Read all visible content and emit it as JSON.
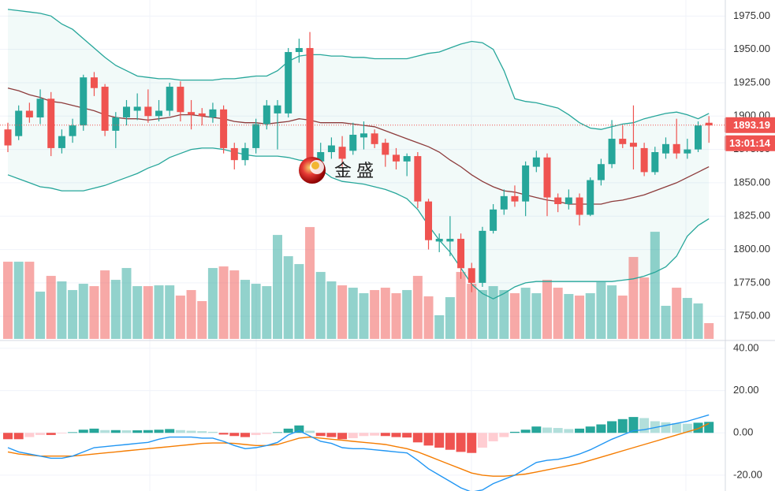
{
  "chart_data": [
    {
      "type": "candlestick",
      "open": [
        1890,
        1885,
        1904,
        1899,
        1913,
        1876,
        1885,
        1893,
        1929,
        1922,
        1889,
        1899,
        1904,
        1907,
        1900,
        1904,
        1922,
        1903,
        1902,
        1899,
        1905,
        1876,
        1867,
        1876,
        1894,
        1902,
        1902,
        1948,
        1951,
        1866,
        1873,
        1877,
        1874,
        1884,
        1887,
        1880,
        1871,
        1866,
        1870,
        1836,
        1806,
        1806,
        1808,
        1786,
        1775,
        1814,
        1830,
        1840,
        1836,
        1862,
        1869,
        1839,
        1834,
        1839,
        1826,
        1852,
        1864,
        1883,
        1880,
        1876,
        1858,
        1872,
        1879,
        1872,
        1875,
        1895
      ],
      "high": [
        1895,
        1908,
        1910,
        1920,
        1918,
        1890,
        1898,
        1931,
        1933,
        1924,
        1903,
        1912,
        1917,
        1920,
        1912,
        1925,
        1926,
        1912,
        1906,
        1910,
        1908,
        1880,
        1880,
        1898,
        1912,
        1912,
        1951,
        1958,
        1963,
        1880,
        1884,
        1885,
        1895,
        1896,
        1890,
        1883,
        1876,
        1872,
        1873,
        1838,
        1812,
        1825,
        1812,
        1790,
        1817,
        1834,
        1845,
        1848,
        1866,
        1874,
        1872,
        1842,
        1845,
        1842,
        1854,
        1868,
        1897,
        1893,
        1908,
        1880,
        1877,
        1884,
        1898,
        1883,
        1896,
        1900
      ],
      "low": [
        1873,
        1882,
        1895,
        1894,
        1870,
        1872,
        1880,
        1889,
        1915,
        1885,
        1876,
        1893,
        1897,
        1895,
        1896,
        1900,
        1896,
        1890,
        1893,
        1895,
        1872,
        1860,
        1863,
        1872,
        1890,
        1875,
        1899,
        1940,
        1862,
        1858,
        1868,
        1862,
        1871,
        1875,
        1876,
        1862,
        1860,
        1855,
        1831,
        1800,
        1798,
        1795,
        1778,
        1768,
        1772,
        1812,
        1826,
        1832,
        1825,
        1858,
        1825,
        1828,
        1830,
        1818,
        1825,
        1848,
        1861,
        1876,
        1860,
        1855,
        1856,
        1868,
        1868,
        1868,
        1873,
        1880
      ],
      "close": [
        1878,
        1904,
        1899,
        1913,
        1876,
        1885,
        1893,
        1929,
        1921,
        1889,
        1899,
        1907,
        1907,
        1900,
        1904,
        1922,
        1903,
        1901,
        1900,
        1905,
        1876,
        1867,
        1876,
        1894,
        1908,
        1908,
        1948,
        1951,
        1866,
        1873,
        1878,
        1868,
        1886,
        1887,
        1879,
        1871,
        1866,
        1870,
        1836,
        1807,
        1808,
        1808,
        1786,
        1775,
        1814,
        1830,
        1840,
        1836,
        1863,
        1869,
        1839,
        1834,
        1839,
        1826,
        1852,
        1864,
        1883,
        1879,
        1877,
        1858,
        1873,
        1879,
        1872,
        1875,
        1893,
        1893
      ],
      "volume": [
        98,
        98,
        98,
        60,
        80,
        73,
        62,
        70,
        67,
        87,
        75,
        90,
        67,
        67,
        68,
        68,
        55,
        62,
        48,
        90,
        92,
        87,
        75,
        70,
        67,
        132,
        105,
        95,
        142,
        85,
        73,
        68,
        65,
        58,
        62,
        65,
        58,
        62,
        80,
        54,
        30,
        53,
        85,
        70,
        62,
        67,
        62,
        58,
        65,
        58,
        75,
        65,
        57,
        55,
        58,
        72,
        68,
        55,
        104,
        78,
        136,
        42,
        65,
        52,
        45,
        20
      ],
      "bb_upper": [
        1980,
        1979,
        1978,
        1977,
        1975,
        1969,
        1965,
        1958,
        1951,
        1944,
        1938,
        1934,
        1930,
        1929,
        1928,
        1928,
        1927,
        1927,
        1927,
        1927,
        1928,
        1928,
        1929,
        1930,
        1930,
        1934,
        1941,
        1945,
        1946,
        1946,
        1945,
        1945,
        1944,
        1944,
        1943,
        1943,
        1943,
        1943,
        1945,
        1947,
        1948,
        1951,
        1954,
        1956,
        1955,
        1950,
        1934,
        1913,
        1911,
        1910,
        1908,
        1906,
        1901,
        1895,
        1891,
        1890,
        1892,
        1894,
        1895,
        1898,
        1900,
        1902,
        1903,
        1901,
        1898,
        1902
      ],
      "bb_middle": [
        1921,
        1919,
        1916,
        1914,
        1911,
        1910,
        1908,
        1906,
        1904,
        1901,
        1899,
        1898,
        1898,
        1897,
        1898,
        1899,
        1901,
        1901,
        1900,
        1899,
        1898,
        1896,
        1895,
        1895,
        1894,
        1895,
        1896,
        1898,
        1897,
        1895,
        1895,
        1895,
        1894,
        1893,
        1892,
        1889,
        1886,
        1883,
        1880,
        1877,
        1873,
        1867,
        1862,
        1856,
        1851,
        1847,
        1844,
        1843,
        1841,
        1839,
        1837,
        1836,
        1834,
        1834,
        1834,
        1834,
        1836,
        1837,
        1839,
        1841,
        1844,
        1847,
        1850,
        1854,
        1858,
        1862
      ],
      "bb_lower": [
        1856,
        1853,
        1850,
        1847,
        1846,
        1844,
        1844,
        1844,
        1846,
        1848,
        1851,
        1854,
        1857,
        1861,
        1864,
        1869,
        1872,
        1875,
        1876,
        1876,
        1875,
        1873,
        1871,
        1870,
        1870,
        1870,
        1869,
        1867,
        1866,
        1860,
        1854,
        1851,
        1850,
        1849,
        1847,
        1845,
        1842,
        1838,
        1830,
        1818,
        1807,
        1798,
        1786,
        1774,
        1767,
        1763,
        1767,
        1772,
        1775,
        1776,
        1776,
        1776,
        1776,
        1776,
        1776,
        1776,
        1776,
        1777,
        1778,
        1780,
        1783,
        1787,
        1795,
        1810,
        1818,
        1823
      ],
      "up_color": "#26a69a",
      "down_color": "#ef5350",
      "band_color": "#26a69a",
      "middle_color": "#8d3b3b",
      "ylim": [
        1733,
        1987
      ],
      "yticks": [
        {
          "value": 1750,
          "label": "1750.00"
        },
        {
          "value": 1775,
          "label": "1775.00"
        },
        {
          "value": 1800,
          "label": "1800.00"
        },
        {
          "value": 1825,
          "label": "1825.00"
        },
        {
          "value": 1850,
          "label": "1850.00"
        },
        {
          "value": 1875,
          "label": "1875.00"
        },
        {
          "value": 1900,
          "label": "1900.00"
        },
        {
          "value": 1925,
          "label": "1925.00"
        },
        {
          "value": 1950,
          "label": "1950.00"
        },
        {
          "value": 1975,
          "label": "1975.00"
        }
      ],
      "grid": true,
      "last_price": 1893.19,
      "countdown": "13:01:14",
      "watermark": "金 盛"
    },
    {
      "type": "macd",
      "histogram": [
        -3,
        -3,
        -2,
        -1,
        -1,
        -0.3,
        0.3,
        1.5,
        2,
        1.3,
        1.3,
        1.2,
        1.2,
        1.3,
        1.5,
        1.8,
        1.3,
        1,
        0.8,
        0.5,
        -0.8,
        -1.5,
        -2,
        -1,
        -0.5,
        0.3,
        2,
        3.5,
        1,
        -1.5,
        -2,
        -3,
        -2.5,
        -1.5,
        -1.3,
        -1.5,
        -2,
        -2.2,
        -4.5,
        -6,
        -7,
        -8,
        -9,
        -9.5,
        -7,
        -4,
        -2,
        0.5,
        1.5,
        3,
        2.5,
        2.3,
        1.8,
        2,
        3,
        4,
        5.5,
        6.5,
        7.5,
        7,
        5.5,
        5,
        4.5,
        4.3,
        4.8,
        5.2
      ],
      "macd": [
        -7,
        -9,
        -10,
        -11,
        -12,
        -12,
        -11,
        -9,
        -7,
        -6.5,
        -6,
        -5.5,
        -5,
        -4.5,
        -3,
        -2,
        -2,
        -2,
        -2.5,
        -2.5,
        -4,
        -6,
        -7.5,
        -7,
        -6,
        -4.5,
        -1,
        1,
        -1.5,
        -4,
        -5,
        -7,
        -7.5,
        -7.5,
        -8,
        -8.5,
        -9,
        -9.5,
        -13,
        -17,
        -20,
        -23,
        -26,
        -28,
        -27,
        -24,
        -22,
        -20,
        -17,
        -14,
        -13,
        -12.5,
        -11.5,
        -10,
        -8,
        -5.5,
        -3,
        -1,
        1,
        1.5,
        2.5,
        3.5,
        4.5,
        5.5,
        7,
        8.5
      ],
      "signal": [
        -9,
        -10,
        -10.5,
        -11,
        -11,
        -11,
        -11,
        -10.5,
        -10,
        -9.5,
        -9,
        -8.5,
        -8,
        -7.5,
        -7,
        -6.5,
        -6,
        -5.5,
        -5,
        -4.8,
        -4.8,
        -5,
        -5.5,
        -6,
        -6,
        -5.5,
        -4,
        -2.5,
        -2,
        -2.5,
        -3,
        -3.5,
        -4,
        -4.5,
        -5,
        -5.5,
        -6.5,
        -7.5,
        -9,
        -11,
        -13,
        -15,
        -17,
        -19,
        -20,
        -20.5,
        -20.5,
        -20,
        -19.5,
        -18.5,
        -17.5,
        -16.5,
        -15.5,
        -14.5,
        -13,
        -11.5,
        -10,
        -8.5,
        -7,
        -5.5,
        -4,
        -2.5,
        -1,
        0.5,
        2,
        4.5
      ],
      "macd_color": "#2196f3",
      "signal_color": "#f57c00",
      "hist_colors": [
        "#26a69a",
        "#b2dfdb",
        "#ef5350",
        "#ffcdd2"
      ],
      "ylim": [
        -27.5,
        43.7
      ],
      "yticks": [
        {
          "value": -20,
          "label": "-20.00"
        },
        {
          "value": 0,
          "label": "0.00"
        },
        {
          "value": 20,
          "label": "20.00"
        },
        {
          "value": 40,
          "label": "40.00"
        }
      ],
      "grid": true
    }
  ]
}
